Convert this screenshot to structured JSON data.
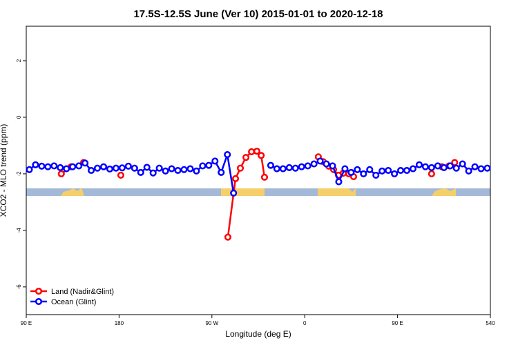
{
  "chart_data": {
    "type": "line",
    "title": "17.5S-12.5S June (Ver 10)   2015-01-01 to 2020-12-18",
    "x_label": "Longitude (deg E)",
    "y_label": "XCO2 - MLO trend (ppm)",
    "xlim": [
      90,
      540
    ],
    "xticks": [
      {
        "value": 90,
        "label": "90 E"
      },
      180,
      {
        "value": 270,
        "label": "90 W"
      },
      {
        "value": 360,
        "label": "0"
      },
      {
        "value": 450,
        "label": "90 E"
      },
      540
    ],
    "ylim": [
      -6.98,
      3.22
    ],
    "yticks": [
      -6,
      -4,
      -2,
      0,
      2
    ],
    "legend": "bottom-left",
    "series": [
      {
        "name": "Land (Nadir&Glint)",
        "color": "#ff0000",
        "x": [
          124,
          133.5,
          null,
          145.6,
          null,
          181.7,
          null,
          285.5,
          292.9,
          297.6,
          303,
          308.4,
          313.6,
          317.8,
          321,
          null,
          373.2,
          377.9,
          383.3,
          388,
          392.7,
          397.3,
          402.7,
          407.4,
          null,
          483,
          null,
          493,
          500,
          505.4
        ],
        "values": [
          -2.0,
          -1.75,
          null,
          -1.6,
          null,
          -2.05,
          null,
          -4.24,
          -2.17,
          -1.8,
          -1.42,
          -1.22,
          -1.2,
          -1.35,
          -2.12,
          null,
          -1.4,
          -1.57,
          -1.73,
          -1.85,
          -2.05,
          -1.98,
          -2.0,
          -2.1,
          null,
          -2.0,
          null,
          -1.75,
          -1.72,
          -1.6
        ]
      },
      {
        "name": "Ocean (Glint)",
        "color": "#0000ff",
        "x": [
          93,
          99,
          105,
          111,
          117,
          123,
          129,
          135,
          141,
          147,
          153,
          159,
          165,
          171,
          177,
          183,
          189,
          195,
          201,
          207,
          213,
          219,
          225,
          231,
          237,
          243,
          249,
          255,
          261,
          267,
          273,
          279,
          285,
          291,
          297,
          303,
          309,
          315,
          321,
          327,
          333,
          339,
          345,
          351,
          357,
          363,
          369,
          375,
          381,
          387,
          393,
          399,
          405,
          411,
          417,
          423,
          429,
          435,
          441,
          447,
          453,
          459,
          465,
          471,
          477,
          483,
          489,
          495,
          501,
          507,
          513,
          519,
          525,
          531,
          537
        ],
        "values": [
          -1.85,
          -1.68,
          -1.73,
          -1.75,
          -1.72,
          -1.78,
          -1.82,
          -1.75,
          -1.72,
          -1.62,
          -1.88,
          -1.8,
          -1.75,
          -1.83,
          -1.8,
          -1.79,
          -1.73,
          -1.8,
          -1.95,
          -1.77,
          -1.97,
          -1.8,
          -1.9,
          -1.82,
          -1.88,
          -1.85,
          -1.82,
          -1.9,
          -1.72,
          -1.7,
          -1.55,
          -1.95,
          -1.32,
          -2.68,
          null,
          null,
          null,
          null,
          null,
          -1.7,
          -1.82,
          -1.82,
          -1.78,
          -1.8,
          -1.75,
          -1.72,
          -1.65,
          -1.55,
          -1.65,
          -1.72,
          -2.28,
          -1.82,
          -1.95,
          -1.85,
          -2.0,
          -1.85,
          -2.05,
          -1.9,
          -1.88,
          -2.0,
          -1.88,
          -1.88,
          -1.82,
          -1.68,
          -1.75,
          -1.78,
          -1.72,
          -1.78,
          -1.72,
          -1.8,
          -1.65,
          -1.9,
          -1.75,
          -1.82,
          -1.8
        ]
      }
    ]
  }
}
